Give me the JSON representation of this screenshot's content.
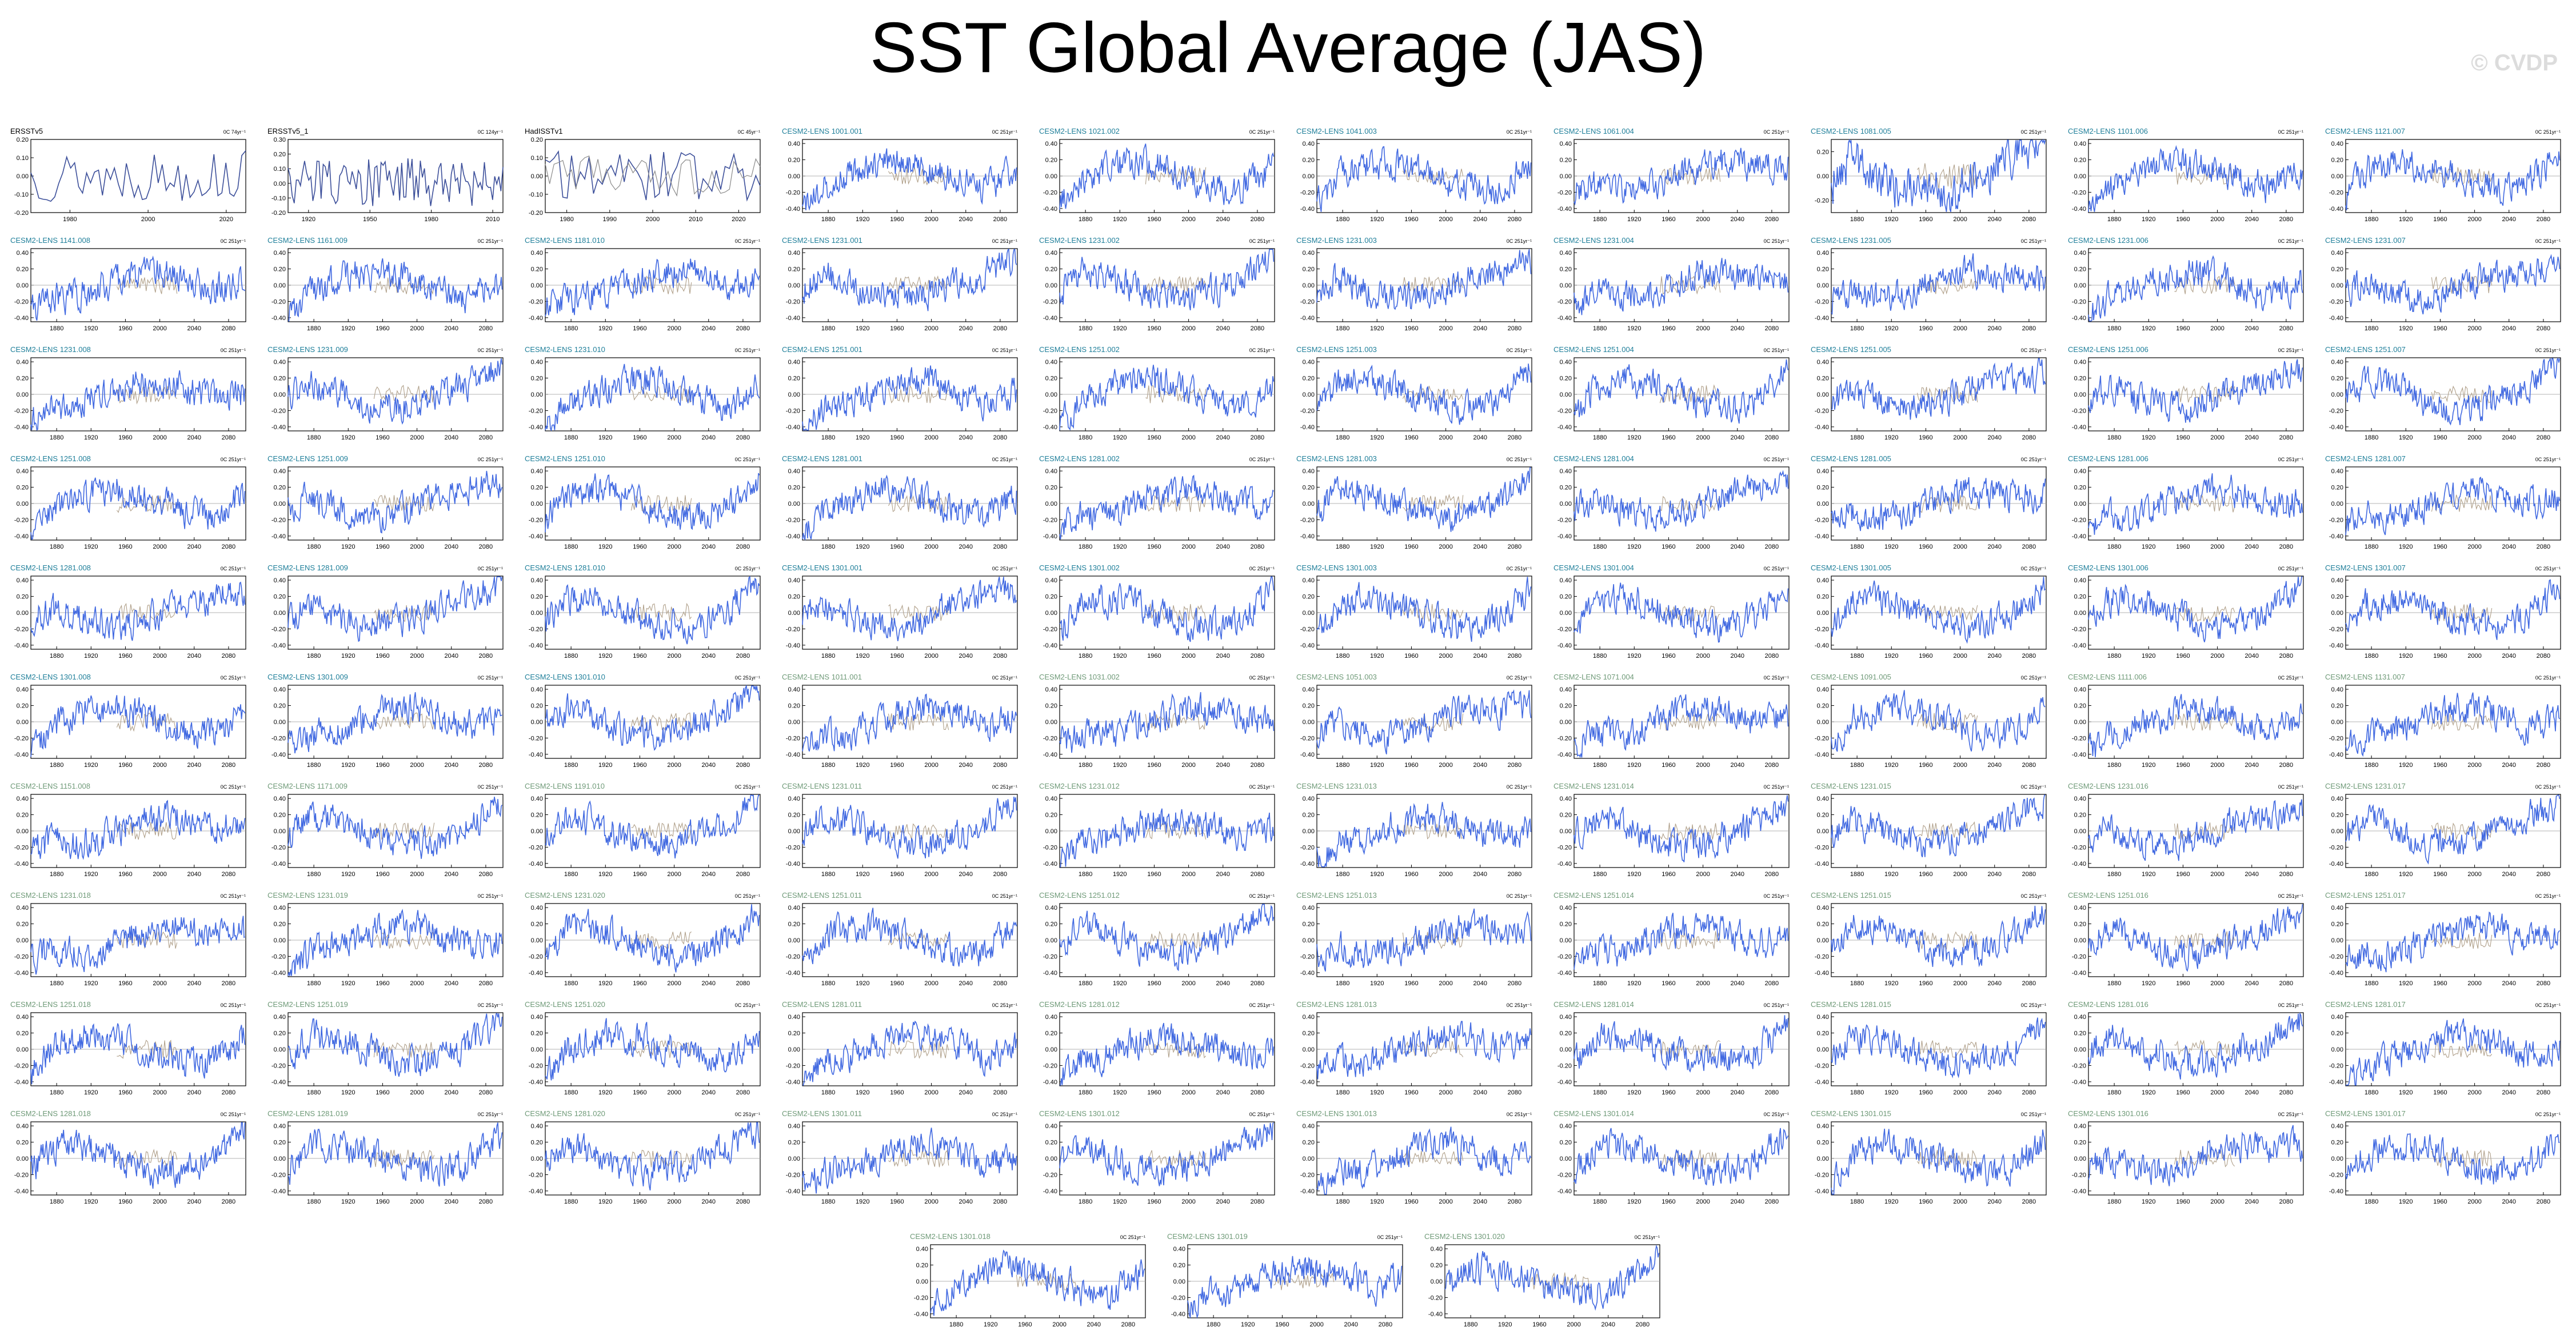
{
  "page": {
    "title": "SST Global Average (JAS)",
    "watermark": "© CVDP"
  },
  "colors": {
    "observation_line": "#3c4f9a",
    "observation_line_2": "#8a8a8a",
    "model_line": "#4169e1",
    "ensemble_mean_line": "#b0a08a",
    "observation_title": "#000000",
    "model_title_teal": "#1f7f9a",
    "model_title_green": "#6f9a78"
  },
  "chart_data": {
    "type": "line",
    "panels": [
      {
        "title": "ERSSTv5",
        "unit": "0C 74yr⁻¹",
        "kind": "obs",
        "title_color": "observation_title",
        "x_ticks": [
          "1980",
          "2000",
          "2020"
        ],
        "y_ticks": [
          "0.20",
          "0.10",
          "0.00",
          "-0.10",
          "-0.20"
        ],
        "ylim": [
          -0.2,
          0.2
        ]
      },
      {
        "title": "ERSSTv5_1",
        "unit": "0C 124yr⁻¹",
        "kind": "obs",
        "title_color": "observation_title",
        "x_ticks": [
          "1920",
          "1950",
          "1980",
          "2010"
        ],
        "y_ticks": [
          "0.30",
          "0.20",
          "0.10",
          "0.00",
          "-0.10",
          "-0.20"
        ],
        "ylim": [
          -0.2,
          0.3
        ]
      },
      {
        "title": "HadISSTv1",
        "unit": "0C 45yr⁻¹",
        "kind": "obs2",
        "title_color": "observation_title",
        "x_ticks": [
          "1980",
          "1990",
          "2000",
          "2010",
          "2020"
        ],
        "y_ticks": [
          "0.20",
          "0.10",
          "0.00",
          "-0.10",
          "-0.20"
        ],
        "ylim": [
          -0.2,
          0.2
        ]
      },
      {
        "title": "CESM2-LENS 1001.001",
        "unit": "0C 251yr⁻¹",
        "kind": "model",
        "title_color": "model_title_teal"
      },
      {
        "title": "CESM2-LENS 1021.002",
        "unit": "0C 251yr⁻¹",
        "kind": "model",
        "title_color": "model_title_teal"
      },
      {
        "title": "CESM2-LENS 1041.003",
        "unit": "0C 251yr⁻¹",
        "kind": "model",
        "title_color": "model_title_teal"
      },
      {
        "title": "CESM2-LENS 1061.004",
        "unit": "0C 251yr⁻¹",
        "kind": "model",
        "title_color": "model_title_teal"
      },
      {
        "title": "CESM2-LENS 1081.005",
        "unit": "0C 251yr⁻¹",
        "kind": "model",
        "title_color": "model_title_teal",
        "y_ticks": [
          "0.20",
          "0.00",
          "-0.20"
        ],
        "ylim": [
          -0.3,
          0.3
        ]
      },
      {
        "title": "CESM2-LENS 1101.006",
        "unit": "0C 251yr⁻¹",
        "kind": "model",
        "title_color": "model_title_teal"
      },
      {
        "title": "CESM2-LENS 1121.007",
        "unit": "0C 251yr⁻¹",
        "kind": "model",
        "title_color": "model_title_teal"
      },
      {
        "title": "CESM2-LENS 1141.008",
        "unit": "0C 251yr⁻¹",
        "kind": "model",
        "title_color": "model_title_teal"
      },
      {
        "title": "CESM2-LENS 1161.009",
        "unit": "0C 251yr⁻¹",
        "kind": "model",
        "title_color": "model_title_teal"
      },
      {
        "title": "CESM2-LENS 1181.010",
        "unit": "0C 251yr⁻¹",
        "kind": "model",
        "title_color": "model_title_teal"
      },
      {
        "title": "CESM2-LENS 1231.001",
        "unit": "0C 251yr⁻¹",
        "kind": "model",
        "title_color": "model_title_teal"
      },
      {
        "title": "CESM2-LENS 1231.002",
        "unit": "0C 251yr⁻¹",
        "kind": "model",
        "title_color": "model_title_teal"
      },
      {
        "title": "CESM2-LENS 1231.003",
        "unit": "0C 251yr⁻¹",
        "kind": "model",
        "title_color": "model_title_teal"
      },
      {
        "title": "CESM2-LENS 1231.004",
        "unit": "0C 251yr⁻¹",
        "kind": "model",
        "title_color": "model_title_teal"
      },
      {
        "title": "CESM2-LENS 1231.005",
        "unit": "0C 251yr⁻¹",
        "kind": "model",
        "title_color": "model_title_teal"
      },
      {
        "title": "CESM2-LENS 1231.006",
        "unit": "0C 251yr⁻¹",
        "kind": "model",
        "title_color": "model_title_teal"
      },
      {
        "title": "CESM2-LENS 1231.007",
        "unit": "0C 251yr⁻¹",
        "kind": "model",
        "title_color": "model_title_teal"
      },
      {
        "title": "CESM2-LENS 1231.008",
        "unit": "0C 251yr⁻¹",
        "kind": "model",
        "title_color": "model_title_teal"
      },
      {
        "title": "CESM2-LENS 1231.009",
        "unit": "0C 251yr⁻¹",
        "kind": "model",
        "title_color": "model_title_teal"
      },
      {
        "title": "CESM2-LENS 1231.010",
        "unit": "0C 251yr⁻¹",
        "kind": "model",
        "title_color": "model_title_teal"
      },
      {
        "title": "CESM2-LENS 1251.001",
        "unit": "0C 251yr⁻¹",
        "kind": "model",
        "title_color": "model_title_teal"
      },
      {
        "title": "CESM2-LENS 1251.002",
        "unit": "0C 251yr⁻¹",
        "kind": "model",
        "title_color": "model_title_teal"
      },
      {
        "title": "CESM2-LENS 1251.003",
        "unit": "0C 251yr⁻¹",
        "kind": "model",
        "title_color": "model_title_teal"
      },
      {
        "title": "CESM2-LENS 1251.004",
        "unit": "0C 251yr⁻¹",
        "kind": "model",
        "title_color": "model_title_teal"
      },
      {
        "title": "CESM2-LENS 1251.005",
        "unit": "0C 251yr⁻¹",
        "kind": "model",
        "title_color": "model_title_teal"
      },
      {
        "title": "CESM2-LENS 1251.006",
        "unit": "0C 251yr⁻¹",
        "kind": "model",
        "title_color": "model_title_teal"
      },
      {
        "title": "CESM2-LENS 1251.007",
        "unit": "0C 251yr⁻¹",
        "kind": "model",
        "title_color": "model_title_teal"
      },
      {
        "title": "CESM2-LENS 1251.008",
        "unit": "0C 251yr⁻¹",
        "kind": "model",
        "title_color": "model_title_teal"
      },
      {
        "title": "CESM2-LENS 1251.009",
        "unit": "0C 251yr⁻¹",
        "kind": "model",
        "title_color": "model_title_teal"
      },
      {
        "title": "CESM2-LENS 1251.010",
        "unit": "0C 251yr⁻¹",
        "kind": "model",
        "title_color": "model_title_teal"
      },
      {
        "title": "CESM2-LENS 1281.001",
        "unit": "0C 251yr⁻¹",
        "kind": "model",
        "title_color": "model_title_teal"
      },
      {
        "title": "CESM2-LENS 1281.002",
        "unit": "0C 251yr⁻¹",
        "kind": "model",
        "title_color": "model_title_teal"
      },
      {
        "title": "CESM2-LENS 1281.003",
        "unit": "0C 251yr⁻¹",
        "kind": "model",
        "title_color": "model_title_teal"
      },
      {
        "title": "CESM2-LENS 1281.004",
        "unit": "0C 251yr⁻¹",
        "kind": "model",
        "title_color": "model_title_teal"
      },
      {
        "title": "CESM2-LENS 1281.005",
        "unit": "0C 251yr⁻¹",
        "kind": "model",
        "title_color": "model_title_teal"
      },
      {
        "title": "CESM2-LENS 1281.006",
        "unit": "0C 251yr⁻¹",
        "kind": "model",
        "title_color": "model_title_teal"
      },
      {
        "title": "CESM2-LENS 1281.007",
        "unit": "0C 251yr⁻¹",
        "kind": "model",
        "title_color": "model_title_teal"
      },
      {
        "title": "CESM2-LENS 1281.008",
        "unit": "0C 251yr⁻¹",
        "kind": "model",
        "title_color": "model_title_teal"
      },
      {
        "title": "CESM2-LENS 1281.009",
        "unit": "0C 251yr⁻¹",
        "kind": "model",
        "title_color": "model_title_teal"
      },
      {
        "title": "CESM2-LENS 1281.010",
        "unit": "0C 251yr⁻¹",
        "kind": "model",
        "title_color": "model_title_teal"
      },
      {
        "title": "CESM2-LENS 1301.001",
        "unit": "0C 251yr⁻¹",
        "kind": "model",
        "title_color": "model_title_teal"
      },
      {
        "title": "CESM2-LENS 1301.002",
        "unit": "0C 251yr⁻¹",
        "kind": "model",
        "title_color": "model_title_teal"
      },
      {
        "title": "CESM2-LENS 1301.003",
        "unit": "0C 251yr⁻¹",
        "kind": "model",
        "title_color": "model_title_teal"
      },
      {
        "title": "CESM2-LENS 1301.004",
        "unit": "0C 251yr⁻¹",
        "kind": "model",
        "title_color": "model_title_teal"
      },
      {
        "title": "CESM2-LENS 1301.005",
        "unit": "0C 251yr⁻¹",
        "kind": "model",
        "title_color": "model_title_teal"
      },
      {
        "title": "CESM2-LENS 1301.006",
        "unit": "0C 251yr⁻¹",
        "kind": "model",
        "title_color": "model_title_teal"
      },
      {
        "title": "CESM2-LENS 1301.007",
        "unit": "0C 251yr⁻¹",
        "kind": "model",
        "title_color": "model_title_teal"
      },
      {
        "title": "CESM2-LENS 1301.008",
        "unit": "0C 251yr⁻¹",
        "kind": "model",
        "title_color": "model_title_teal"
      },
      {
        "title": "CESM2-LENS 1301.009",
        "unit": "0C 251yr⁻¹",
        "kind": "model",
        "title_color": "model_title_teal"
      },
      {
        "title": "CESM2-LENS 1301.010",
        "unit": "0C 251yr⁻¹",
        "kind": "model",
        "title_color": "model_title_teal"
      },
      {
        "title": "CESM2-LENS 1011.001",
        "unit": "0C 251yr⁻¹",
        "kind": "model",
        "title_color": "model_title_green"
      },
      {
        "title": "CESM2-LENS 1031.002",
        "unit": "0C 251yr⁻¹",
        "kind": "model",
        "title_color": "model_title_green"
      },
      {
        "title": "CESM2-LENS 1051.003",
        "unit": "0C 251yr⁻¹",
        "kind": "model",
        "title_color": "model_title_green"
      },
      {
        "title": "CESM2-LENS 1071.004",
        "unit": "0C 251yr⁻¹",
        "kind": "model",
        "title_color": "model_title_green"
      },
      {
        "title": "CESM2-LENS 1091.005",
        "unit": "0C 251yr⁻¹",
        "kind": "model",
        "title_color": "model_title_green"
      },
      {
        "title": "CESM2-LENS 1111.006",
        "unit": "0C 251yr⁻¹",
        "kind": "model",
        "title_color": "model_title_green"
      },
      {
        "title": "CESM2-LENS 1131.007",
        "unit": "0C 251yr⁻¹",
        "kind": "model",
        "title_color": "model_title_green"
      },
      {
        "title": "CESM2-LENS 1151.008",
        "unit": "0C 251yr⁻¹",
        "kind": "model",
        "title_color": "model_title_green"
      },
      {
        "title": "CESM2-LENS 1171.009",
        "unit": "0C 251yr⁻¹",
        "kind": "model",
        "title_color": "model_title_green"
      },
      {
        "title": "CESM2-LENS 1191.010",
        "unit": "0C 251yr⁻¹",
        "kind": "model",
        "title_color": "model_title_green"
      },
      {
        "title": "CESM2-LENS 1231.011",
        "unit": "0C 251yr⁻¹",
        "kind": "model",
        "title_color": "model_title_green"
      },
      {
        "title": "CESM2-LENS 1231.012",
        "unit": "0C 251yr⁻¹",
        "kind": "model",
        "title_color": "model_title_green"
      },
      {
        "title": "CESM2-LENS 1231.013",
        "unit": "0C 251yr⁻¹",
        "kind": "model",
        "title_color": "model_title_green"
      },
      {
        "title": "CESM2-LENS 1231.014",
        "unit": "0C 251yr⁻¹",
        "kind": "model",
        "title_color": "model_title_green"
      },
      {
        "title": "CESM2-LENS 1231.015",
        "unit": "0C 251yr⁻¹",
        "kind": "model",
        "title_color": "model_title_green"
      },
      {
        "title": "CESM2-LENS 1231.016",
        "unit": "0C 251yr⁻¹",
        "kind": "model",
        "title_color": "model_title_green"
      },
      {
        "title": "CESM2-LENS 1231.017",
        "unit": "0C 251yr⁻¹",
        "kind": "model",
        "title_color": "model_title_green"
      },
      {
        "title": "CESM2-LENS 1231.018",
        "unit": "0C 251yr⁻¹",
        "kind": "model",
        "title_color": "model_title_green"
      },
      {
        "title": "CESM2-LENS 1231.019",
        "unit": "0C 251yr⁻¹",
        "kind": "model",
        "title_color": "model_title_green"
      },
      {
        "title": "CESM2-LENS 1231.020",
        "unit": "0C 251yr⁻¹",
        "kind": "model",
        "title_color": "model_title_green"
      },
      {
        "title": "CESM2-LENS 1251.011",
        "unit": "0C 251yr⁻¹",
        "kind": "model",
        "title_color": "model_title_green"
      },
      {
        "title": "CESM2-LENS 1251.012",
        "unit": "0C 251yr⁻¹",
        "kind": "model",
        "title_color": "model_title_green"
      },
      {
        "title": "CESM2-LENS 1251.013",
        "unit": "0C 251yr⁻¹",
        "kind": "model",
        "title_color": "model_title_green"
      },
      {
        "title": "CESM2-LENS 1251.014",
        "unit": "0C 251yr⁻¹",
        "kind": "model",
        "title_color": "model_title_green"
      },
      {
        "title": "CESM2-LENS 1251.015",
        "unit": "0C 251yr⁻¹",
        "kind": "model",
        "title_color": "model_title_green"
      },
      {
        "title": "CESM2-LENS 1251.016",
        "unit": "0C 251yr⁻¹",
        "kind": "model",
        "title_color": "model_title_green"
      },
      {
        "title": "CESM2-LENS 1251.017",
        "unit": "0C 251yr⁻¹",
        "kind": "model",
        "title_color": "model_title_green"
      },
      {
        "title": "CESM2-LENS 1251.018",
        "unit": "0C 251yr⁻¹",
        "kind": "model",
        "title_color": "model_title_green"
      },
      {
        "title": "CESM2-LENS 1251.019",
        "unit": "0C 251yr⁻¹",
        "kind": "model",
        "title_color": "model_title_green"
      },
      {
        "title": "CESM2-LENS 1251.020",
        "unit": "0C 251yr⁻¹",
        "kind": "model",
        "title_color": "model_title_green"
      },
      {
        "title": "CESM2-LENS 1281.011",
        "unit": "0C 251yr⁻¹",
        "kind": "model",
        "title_color": "model_title_green"
      },
      {
        "title": "CESM2-LENS 1281.012",
        "unit": "0C 251yr⁻¹",
        "kind": "model",
        "title_color": "model_title_green"
      },
      {
        "title": "CESM2-LENS 1281.013",
        "unit": "0C 251yr⁻¹",
        "kind": "model",
        "title_color": "model_title_green"
      },
      {
        "title": "CESM2-LENS 1281.014",
        "unit": "0C 251yr⁻¹",
        "kind": "model",
        "title_color": "model_title_green"
      },
      {
        "title": "CESM2-LENS 1281.015",
        "unit": "0C 251yr⁻¹",
        "kind": "model",
        "title_color": "model_title_green"
      },
      {
        "title": "CESM2-LENS 1281.016",
        "unit": "0C 251yr⁻¹",
        "kind": "model",
        "title_color": "model_title_green"
      },
      {
        "title": "CESM2-LENS 1281.017",
        "unit": "0C 251yr⁻¹",
        "kind": "model",
        "title_color": "model_title_green"
      },
      {
        "title": "CESM2-LENS 1281.018",
        "unit": "0C 251yr⁻¹",
        "kind": "model",
        "title_color": "model_title_green"
      },
      {
        "title": "CESM2-LENS 1281.019",
        "unit": "0C 251yr⁻¹",
        "kind": "model",
        "title_color": "model_title_green"
      },
      {
        "title": "CESM2-LENS 1281.020",
        "unit": "0C 251yr⁻¹",
        "kind": "model",
        "title_color": "model_title_green"
      },
      {
        "title": "CESM2-LENS 1301.011",
        "unit": "0C 251yr⁻¹",
        "kind": "model",
        "title_color": "model_title_green"
      },
      {
        "title": "CESM2-LENS 1301.012",
        "unit": "0C 251yr⁻¹",
        "kind": "model",
        "title_color": "model_title_green"
      },
      {
        "title": "CESM2-LENS 1301.013",
        "unit": "0C 251yr⁻¹",
        "kind": "model",
        "title_color": "model_title_green"
      },
      {
        "title": "CESM2-LENS 1301.014",
        "unit": "0C 251yr⁻¹",
        "kind": "model",
        "title_color": "model_title_green"
      },
      {
        "title": "CESM2-LENS 1301.015",
        "unit": "0C 251yr⁻¹",
        "kind": "model",
        "title_color": "model_title_green"
      },
      {
        "title": "CESM2-LENS 1301.016",
        "unit": "0C 251yr⁻¹",
        "kind": "model",
        "title_color": "model_title_green"
      },
      {
        "title": "CESM2-LENS 1301.017",
        "unit": "0C 251yr⁻¹",
        "kind": "model",
        "title_color": "model_title_green"
      },
      {
        "title": "CESM2-LENS 1301.018",
        "unit": "0C 251yr⁻¹",
        "kind": "model",
        "title_color": "model_title_green"
      },
      {
        "title": "CESM2-LENS 1301.019",
        "unit": "0C 251yr⁻¹",
        "kind": "model",
        "title_color": "model_title_green"
      },
      {
        "title": "CESM2-LENS 1301.020",
        "unit": "0C 251yr⁻¹",
        "kind": "model",
        "title_color": "model_title_green"
      }
    ],
    "model_defaults": {
      "x_range": [
        1850,
        2100
      ],
      "x_ticks": [
        "1880",
        "1920",
        "1960",
        "2000",
        "2040",
        "2080"
      ],
      "y_ticks": [
        "0.40",
        "0.20",
        "0.00",
        "-0.20",
        "-0.40"
      ],
      "ylim": [
        -0.45,
        0.45
      ]
    }
  }
}
